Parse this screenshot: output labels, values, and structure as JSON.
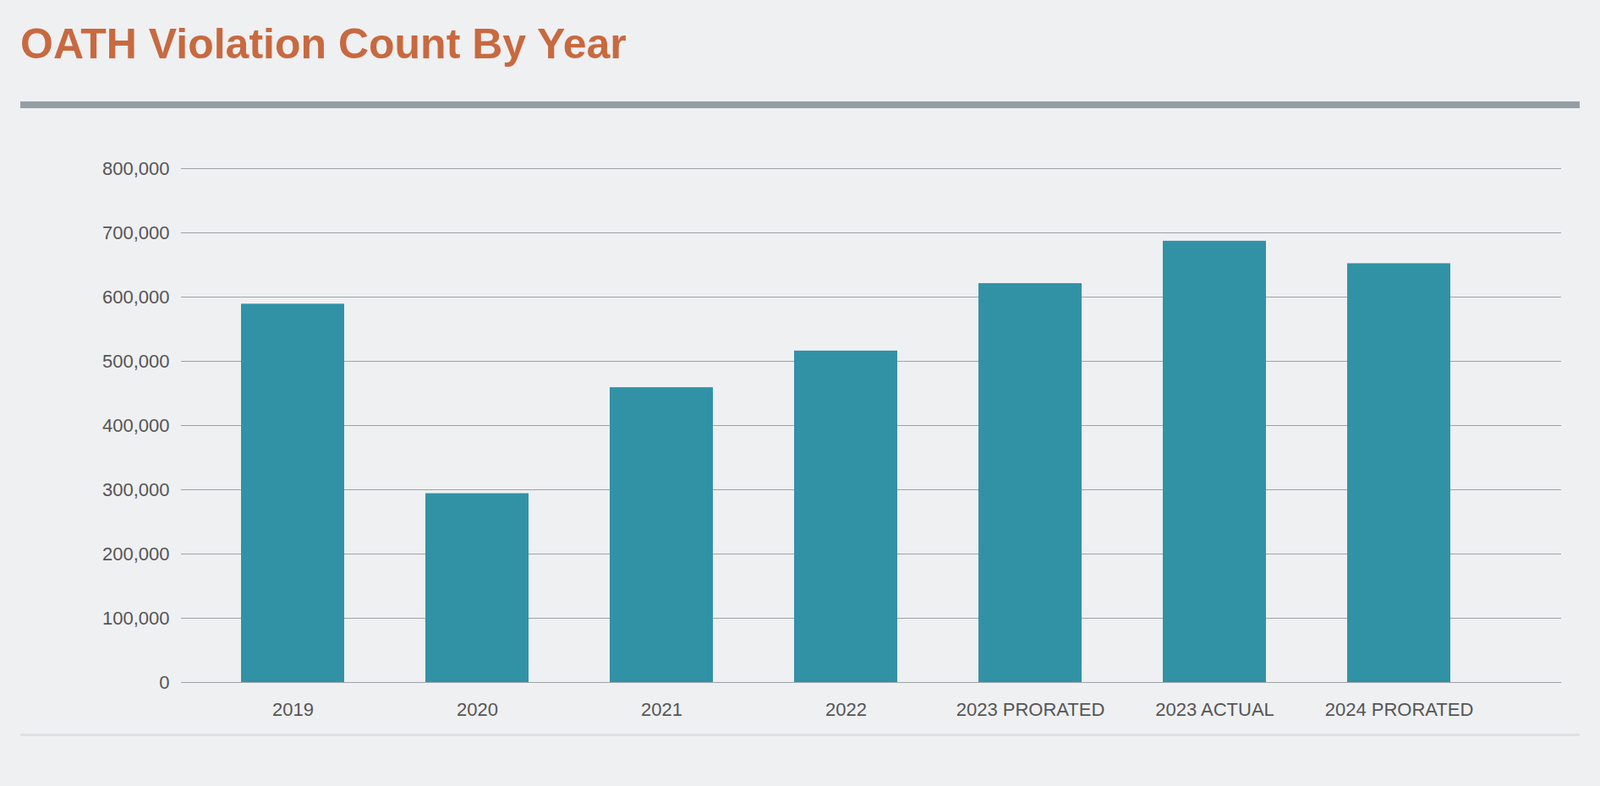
{
  "chart_data": {
    "type": "bar",
    "title": "OATH Violation Count By Year",
    "categories": [
      "2019",
      "2020",
      "2021",
      "2022",
      "2023 PRORATED",
      "2023 ACTUAL",
      "2024 PRORATED"
    ],
    "values": [
      589000,
      294000,
      459000,
      516000,
      621000,
      687000,
      652000
    ],
    "color": "#3192a6",
    "ylim": [
      0,
      800000
    ],
    "yticks": [
      0,
      {
        "value": 100000,
        "label": "100,000"
      },
      {
        "value": 200000,
        "label": "200,000"
      },
      {
        "value": 300000,
        "label": "300,000"
      },
      {
        "value": 400000,
        "label": "400,000"
      },
      {
        "value": 500000,
        "label": "500,000"
      },
      {
        "value": 600000,
        "label": "600,000"
      },
      {
        "value": 700000,
        "label": "700,000"
      },
      {
        "value": 800000,
        "label": "800,000"
      }
    ],
    "grid": true
  }
}
